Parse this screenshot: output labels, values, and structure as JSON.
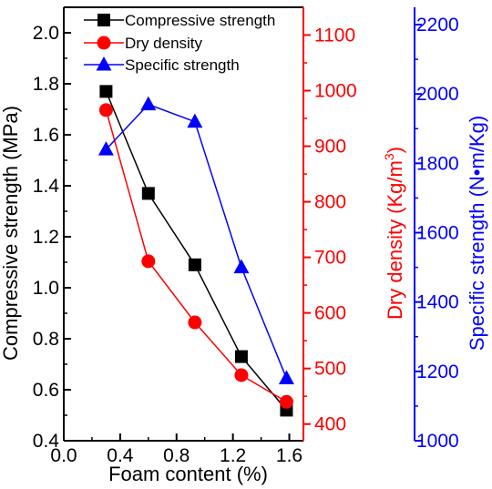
{
  "chart_data": {
    "type": "line",
    "x": [
      0.3,
      0.6,
      0.93,
      1.26,
      1.58
    ],
    "xlabel": "Foam content (%)",
    "xlim": [
      0.0,
      1.7
    ],
    "xticks": [
      "0.0",
      "0.4",
      "0.8",
      "1.2",
      "1.6"
    ],
    "axes": [
      {
        "id": "left",
        "label": "Compressive strength (MPa)",
        "color": "#000000",
        "ylim": [
          0.4,
          2.1
        ],
        "ticks": [
          "0.4",
          "0.6",
          "0.8",
          "1.0",
          "1.2",
          "1.4",
          "1.6",
          "1.8",
          "2.0"
        ]
      },
      {
        "id": "right1",
        "label": "Dry density (Kg/m³)",
        "label_main": "Dry density (Kg/m",
        "label_sup": "3",
        "label_end": ")",
        "color": "#ff0000",
        "ylim": [
          370,
          1150
        ],
        "ticks": [
          "400",
          "500",
          "600",
          "700",
          "800",
          "900",
          "1000",
          "1100"
        ]
      },
      {
        "id": "right2",
        "label": "Specific strength (N•m/Kg)",
        "color": "#0000ff",
        "ylim": [
          1000,
          2250
        ],
        "ticks": [
          "1000",
          "1200",
          "1400",
          "1600",
          "1800",
          "2000",
          "2200"
        ]
      }
    ],
    "series": [
      {
        "name": "Compressive strength",
        "axis": "left",
        "color": "#000000",
        "marker": "square",
        "values": [
          1.77,
          1.37,
          1.09,
          0.73,
          0.52
        ]
      },
      {
        "name": "Dry density",
        "axis": "right1",
        "color": "#ff0000",
        "marker": "circle",
        "values": [
          965,
          693,
          583,
          488,
          440
        ]
      },
      {
        "name": "Specific strength",
        "axis": "right2",
        "color": "#0000ff",
        "marker": "triangle",
        "values": [
          1840,
          1970,
          1920,
          1500,
          1180
        ]
      }
    ],
    "legend_position": "top-left",
    "grid": false
  }
}
